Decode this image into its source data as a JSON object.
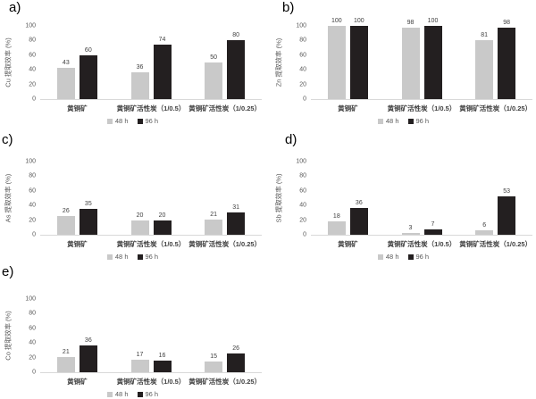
{
  "figure": {
    "description": "Five grouped bar charts (a-e) of metal extraction efficiency for chalcopyrite with/without activated carbon at 48 h and 96 h",
    "background": "#ffffff"
  },
  "colors": {
    "bar_48h": "#c9c9c9",
    "bar_96h": "#231f20",
    "axis_line": "#d9d9d9",
    "tick_text": "#595959",
    "value_text": "#404040",
    "category_text": "#3f3f3f",
    "letter_text": "#000000"
  },
  "legend": {
    "items": [
      {
        "label": "48 h",
        "color": "#c9c9c9"
      },
      {
        "label": "96 h",
        "color": "#231f20"
      }
    ]
  },
  "y_ticks": [
    0,
    20,
    40,
    60,
    80,
    100
  ],
  "categories": [
    "黄铜矿",
    "黄铜矿活性炭（1/0.5）",
    "黄铜矿活性炭（1/0.25）"
  ],
  "chart_data": [
    {
      "type": "bar",
      "panel_label": "a)",
      "ylabel": "Cu 提取效率 (%)",
      "categories": [
        "黄铜矿",
        "黄铜矿活性炭（1/0.5）",
        "黄铜矿活性炭（1/0.25）"
      ],
      "series": [
        {
          "name": "48 h",
          "values": [
            43,
            36,
            50
          ]
        },
        {
          "name": "96 h",
          "values": [
            60,
            74,
            80
          ]
        }
      ],
      "ylim": [
        0,
        100
      ],
      "grid": false,
      "legend_position": "bottom-center"
    },
    {
      "type": "bar",
      "panel_label": "b)",
      "ylabel": "Zn 提取效率 (%)",
      "categories": [
        "黄铜矿",
        "黄铜矿活性炭（1/0.5）",
        "黄铜矿活性炭（1/0.25）"
      ],
      "series": [
        {
          "name": "48 h",
          "values": [
            100,
            98,
            81
          ]
        },
        {
          "name": "96 h",
          "values": [
            100,
            100,
            98
          ]
        }
      ],
      "ylim": [
        0,
        100
      ],
      "grid": false,
      "legend_position": "bottom-center"
    },
    {
      "type": "bar",
      "panel_label": "c)",
      "ylabel": "As 提取效率 (%)",
      "categories": [
        "黄铜矿",
        "黄铜矿活性炭（1/0.5）",
        "黄铜矿活性炭（1/0.25）"
      ],
      "series": [
        {
          "name": "48 h",
          "values": [
            26,
            20,
            21
          ]
        },
        {
          "name": "96 h",
          "values": [
            35,
            20,
            31
          ]
        }
      ],
      "ylim": [
        0,
        100
      ],
      "grid": false,
      "legend_position": "bottom-center"
    },
    {
      "type": "bar",
      "panel_label": "d)",
      "ylabel": "Sb 提取效率 (%)",
      "categories": [
        "黄铜矿",
        "黄铜矿活性炭（1/0.5）",
        "黄铜矿活性炭（1/0.25）"
      ],
      "series": [
        {
          "name": "48 h",
          "values": [
            18,
            3,
            6
          ]
        },
        {
          "name": "96 h",
          "values": [
            36,
            7,
            53
          ]
        }
      ],
      "ylim": [
        0,
        100
      ],
      "grid": false,
      "legend_position": "bottom-center"
    },
    {
      "type": "bar",
      "panel_label": "e)",
      "ylabel": "Co 提取效率 (%)",
      "categories": [
        "黄铜矿",
        "黄铜矿活性炭（1/0.5）",
        "黄铜矿活性炭（1/0.25）"
      ],
      "series": [
        {
          "name": "48 h",
          "values": [
            21,
            17,
            15
          ]
        },
        {
          "name": "96 h",
          "values": [
            36,
            16,
            26
          ]
        }
      ],
      "ylim": [
        0,
        100
      ],
      "grid": false,
      "legend_position": "bottom-center"
    }
  ]
}
